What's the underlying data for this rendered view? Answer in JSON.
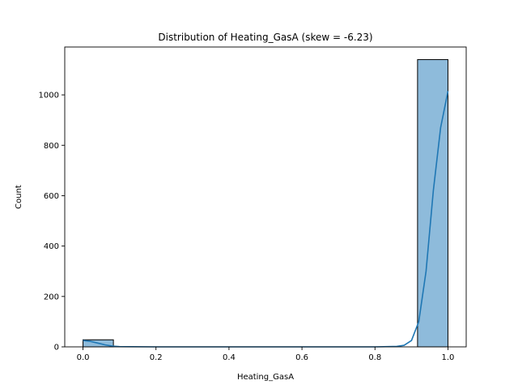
{
  "chart_data": {
    "type": "bar",
    "title": "Distribution of Heating_GasA (skew = -6.23)",
    "xlabel": "Heating_GasA",
    "ylabel": "Count",
    "xlim": [
      -0.05,
      1.05
    ],
    "ylim": [
      0,
      1190
    ],
    "x_ticks": [
      0.0,
      0.2,
      0.4,
      0.6,
      0.8,
      1.0
    ],
    "x_tick_labels": [
      "0.0",
      "0.2",
      "0.4",
      "0.6",
      "0.8",
      "1.0"
    ],
    "y_ticks": [
      0,
      200,
      400,
      600,
      800,
      1000
    ],
    "y_tick_labels": [
      "0",
      "200",
      "400",
      "600",
      "800",
      "1000"
    ],
    "bins": [
      {
        "x0": 0.0,
        "x1": 0.0833,
        "count": 28
      },
      {
        "x0": 0.9167,
        "x1": 1.0,
        "count": 1140
      }
    ],
    "kde": {
      "x": [
        0.0,
        0.02,
        0.04,
        0.06,
        0.08,
        0.1,
        0.2,
        0.4,
        0.6,
        0.8,
        0.86,
        0.88,
        0.9,
        0.92,
        0.94,
        0.96,
        0.98,
        1.0
      ],
      "y": [
        25,
        22,
        15,
        8,
        3,
        1,
        0,
        0,
        0,
        0,
        2,
        6,
        25,
        100,
        300,
        620,
        870,
        1015
      ]
    },
    "grid": false,
    "legend": "none",
    "colors": {
      "bar_fill": "#8ebbdb",
      "bar_edge": "#000000",
      "kde_line": "#1f77b4"
    }
  }
}
